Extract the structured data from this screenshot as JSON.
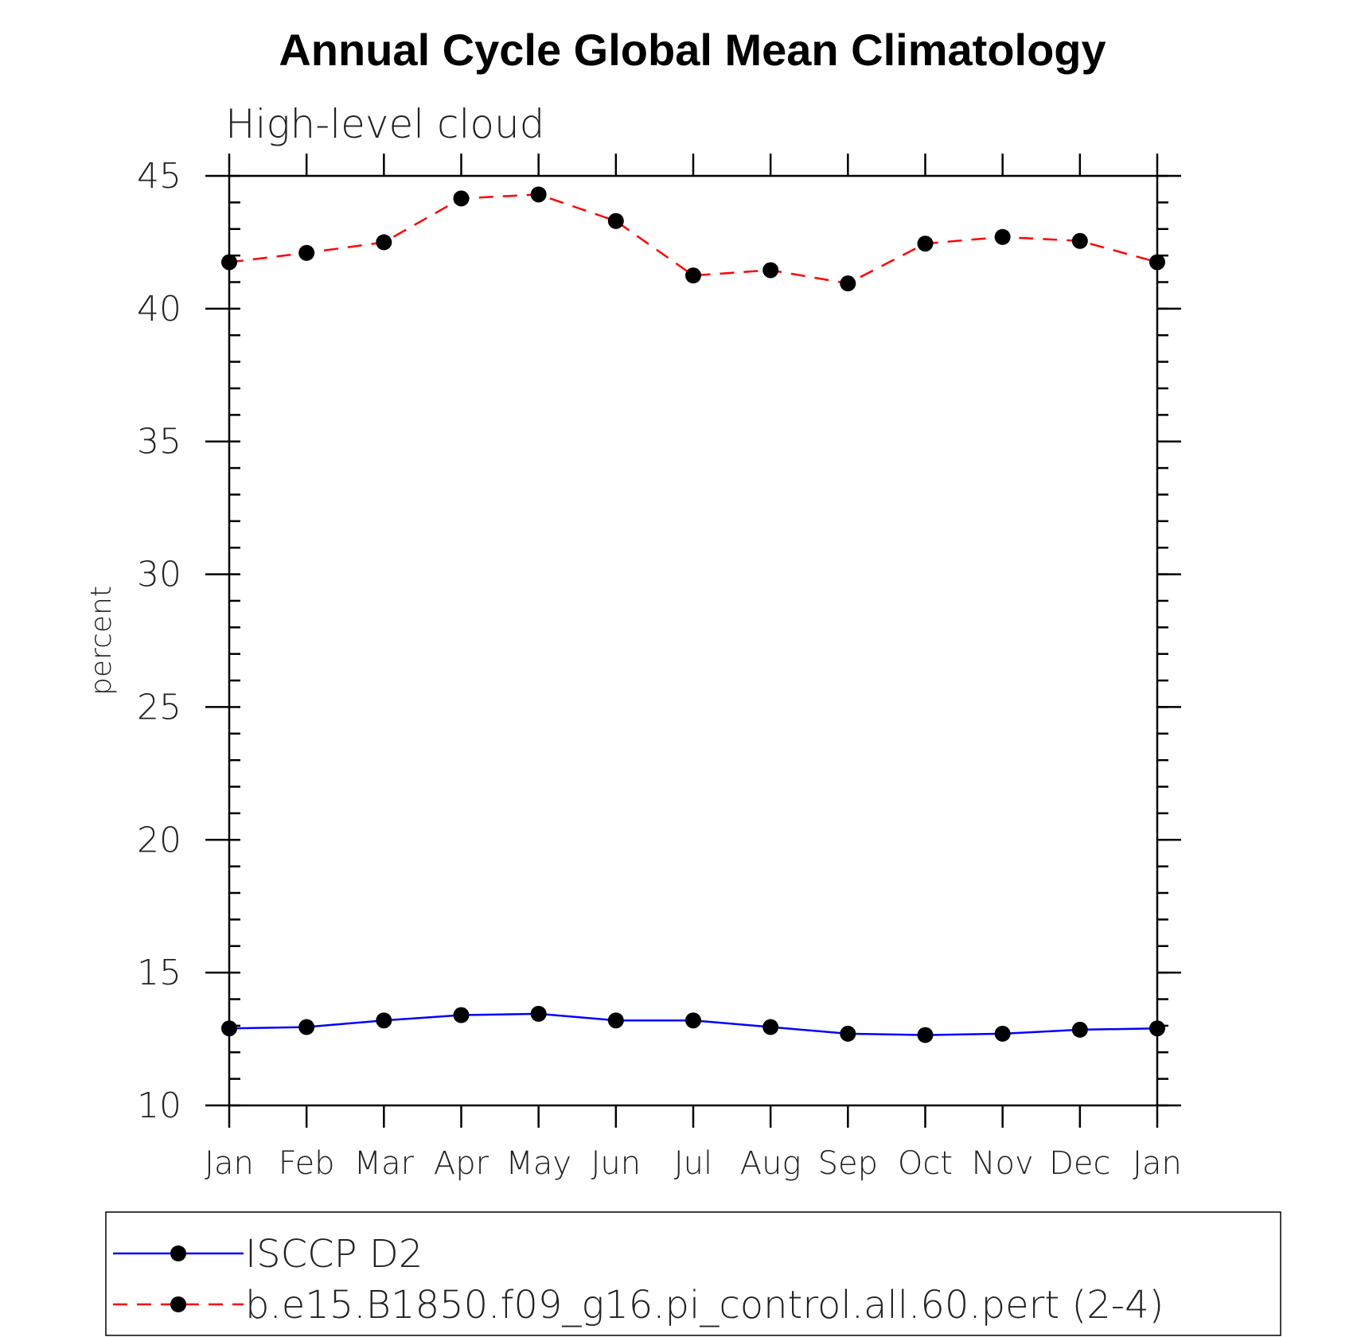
{
  "chart_data": {
    "type": "line",
    "title": "Annual Cycle Global Mean Climatology",
    "subtitle": "High-level cloud",
    "xlabel": "",
    "ylabel": "percent",
    "categories": [
      "Jan",
      "Feb",
      "Mar",
      "Apr",
      "May",
      "Jun",
      "Jul",
      "Aug",
      "Sep",
      "Oct",
      "Nov",
      "Dec",
      "Jan"
    ],
    "ylim": [
      10,
      45
    ],
    "yticks": [
      10,
      15,
      20,
      25,
      30,
      35,
      40,
      45
    ],
    "grid": false,
    "legend_position": "bottom",
    "series": [
      {
        "name": "ISCCP D2",
        "color": "#0000ff",
        "line_style": "solid",
        "marker": "filled-circle",
        "values": [
          12.9,
          12.95,
          13.2,
          13.4,
          13.45,
          13.2,
          13.2,
          12.95,
          12.7,
          12.65,
          12.7,
          12.85,
          12.9
        ]
      },
      {
        "name": "b.e15.B1850.f09_g16.pi_control.all.60.pert (2-4)",
        "color": "#ff0000",
        "line_style": "dashed",
        "marker": "filled-circle",
        "values": [
          41.75,
          42.1,
          42.5,
          44.15,
          44.3,
          43.3,
          41.25,
          41.45,
          40.95,
          42.45,
          42.7,
          42.55,
          41.75
        ]
      }
    ]
  }
}
